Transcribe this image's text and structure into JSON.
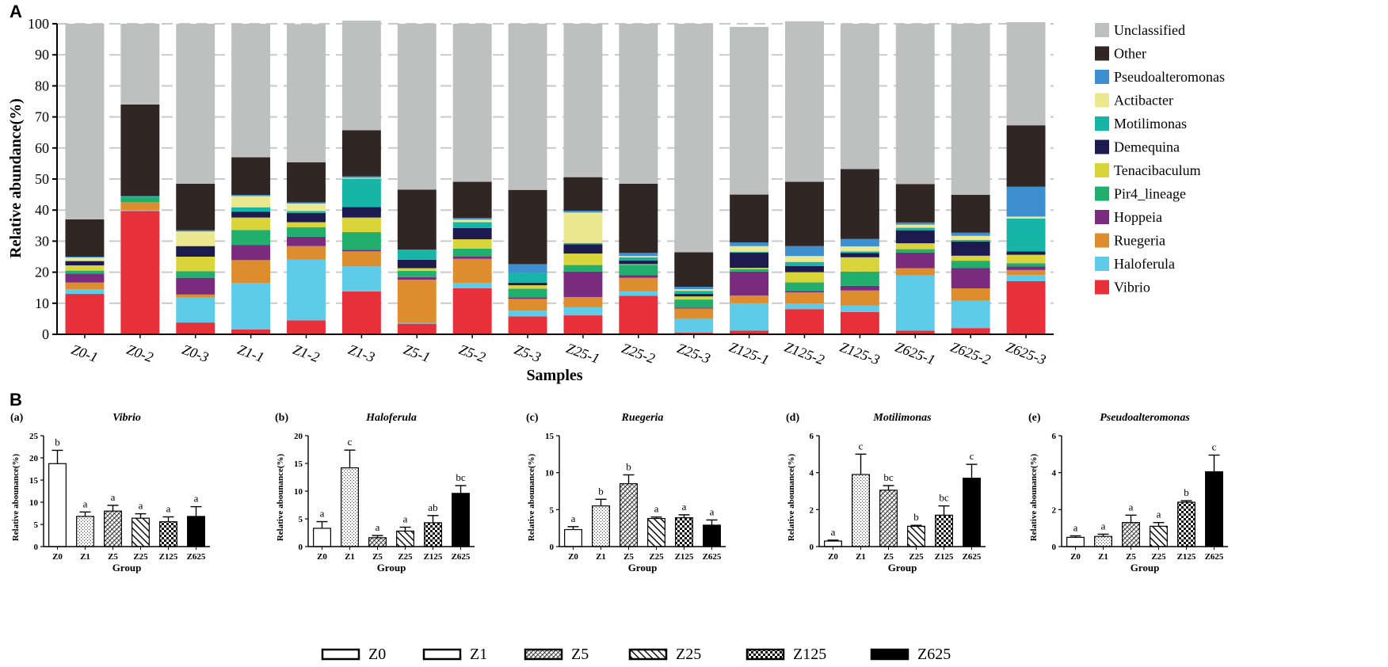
{
  "panel_labels": {
    "a": "A",
    "b": "B"
  },
  "chart_data": [
    {
      "type": "bar",
      "stacked": true,
      "ylabel": "Relative abundance(%)",
      "xlabel": "Samples",
      "ylim": [
        0,
        100
      ],
      "yticks": [
        0,
        10,
        20,
        30,
        40,
        50,
        60,
        70,
        80,
        90,
        100
      ],
      "grid": true,
      "legend_position": "right",
      "categories": [
        "Z0-1",
        "Z0-2",
        "Z0-3",
        "Z1-1",
        "Z1-2",
        "Z1-3",
        "Z5-1",
        "Z5-2",
        "Z5-3",
        "Z25-1",
        "Z25-2",
        "Z25-3",
        "Z125-1",
        "Z125-2",
        "Z125-3",
        "Z625-1",
        "Z625-2",
        "Z625-3"
      ],
      "series": [
        {
          "name": "Vibrio",
          "color": "#e8303a",
          "values": [
            13.0,
            39.7,
            3.8,
            1.6,
            4.5,
            13.8,
            3.4,
            14.8,
            5.8,
            6.1,
            12.4,
            0.5,
            1.2,
            8.1,
            7.2,
            1.2,
            2.0,
            17.1
          ]
        },
        {
          "name": "Haloferula",
          "color": "#5ecbe8",
          "values": [
            1.5,
            0.3,
            8.0,
            14.9,
            19.6,
            8.1,
            0.2,
            1.8,
            1.8,
            2.6,
            1.5,
            4.5,
            8.8,
            1.8,
            2.1,
            17.8,
            8.8,
            2.0
          ]
        },
        {
          "name": "Ruegeria",
          "color": "#dd8d2e",
          "values": [
            2.2,
            2.6,
            1.0,
            7.4,
            4.3,
            4.8,
            14.0,
            7.7,
            3.8,
            3.3,
            4.3,
            3.3,
            2.5,
            3.6,
            4.8,
            2.3,
            4.0,
            1.6
          ]
        },
        {
          "name": "Hoppeia",
          "color": "#7b2b7e",
          "values": [
            2.8,
            0.0,
            5.4,
            4.9,
            3.0,
            0.5,
            0.8,
            0.8,
            0.5,
            8.2,
            0.8,
            0.3,
            7.7,
            0.4,
            1.5,
            5.0,
            6.5,
            1.1
          ]
        },
        {
          "name": "Pir4_lineage",
          "color": "#22ae6c",
          "values": [
            1.0,
            1.6,
            2.1,
            4.8,
            3.1,
            5.7,
            2.0,
            2.5,
            2.8,
            2.1,
            3.4,
            2.6,
            0.8,
            2.8,
            4.6,
            1.1,
            2.4,
            1.1
          ]
        },
        {
          "name": "Tenacibaculum",
          "color": "#d8d43a",
          "values": [
            1.7,
            0.0,
            4.7,
            4.0,
            1.6,
            4.7,
            0.9,
            3.0,
            1.1,
            3.7,
            0.2,
            1.0,
            0.4,
            3.3,
            4.6,
            1.9,
            1.6,
            2.7
          ]
        },
        {
          "name": "Demequina",
          "color": "#1c1a4e",
          "values": [
            1.3,
            0.0,
            3.4,
            1.9,
            3.0,
            3.4,
            2.7,
            3.6,
            0.8,
            3.0,
            1.2,
            0.8,
            4.9,
            2.0,
            1.4,
            4.2,
            4.6,
            1.1
          ]
        },
        {
          "name": "Motilimonas",
          "color": "#16b5a8",
          "values": [
            0.2,
            0.3,
            0.0,
            1.4,
            0.6,
            9.1,
            3.3,
            1.9,
            3.2,
            0.4,
            1.0,
            1.0,
            0.3,
            1.3,
            0.5,
            0.8,
            0.5,
            10.6
          ]
        },
        {
          "name": "Actibacter",
          "color": "#ebe88f",
          "values": [
            1.0,
            0.0,
            4.7,
            3.6,
            2.4,
            0.3,
            0.0,
            0.8,
            0.0,
            9.8,
            0.4,
            0.5,
            1.8,
            1.9,
            1.6,
            1.0,
            1.3,
            0.6
          ]
        },
        {
          "name": "Pseudoalteromonas",
          "color": "#3d8fcf",
          "values": [
            0.3,
            0.0,
            0.4,
            0.4,
            0.4,
            0.5,
            0.0,
            0.6,
            2.8,
            0.6,
            1.0,
            0.8,
            1.2,
            3.2,
            2.4,
            0.7,
            1.0,
            9.6
          ]
        },
        {
          "name": "Other",
          "color": "#302724",
          "values": [
            12.0,
            29.5,
            15.0,
            12.1,
            12.9,
            14.8,
            19.3,
            11.6,
            23.9,
            10.8,
            22.3,
            11.1,
            15.4,
            20.7,
            22.5,
            12.4,
            12.2,
            19.8
          ]
        },
        {
          "name": "Unclassified",
          "color": "#bebfbf",
          "values": [
            63.0,
            26.0,
            51.5,
            43.0,
            44.5,
            35.3,
            53.4,
            50.9,
            53.5,
            49.4,
            51.5,
            73.6,
            54.0,
            51.7,
            46.8,
            51.6,
            55.1,
            33.2
          ]
        }
      ]
    },
    {
      "type": "bar",
      "panel": "(a)",
      "title": "Vibrio",
      "ylabel": "Relative abounance(%)",
      "xlabel": "Group",
      "ylim": [
        0,
        25
      ],
      "yticks": [
        0,
        5,
        10,
        15,
        20,
        25
      ],
      "categories": [
        "Z0",
        "Z1",
        "Z5",
        "Z25",
        "Z125",
        "Z625"
      ],
      "values": [
        18.7,
        6.8,
        8.0,
        6.4,
        5.6,
        6.8
      ],
      "errors": [
        3.0,
        1.0,
        1.3,
        1.0,
        1.1,
        2.2
      ],
      "letters": [
        "b",
        "a",
        "a",
        "a",
        "a",
        "a"
      ]
    },
    {
      "type": "bar",
      "panel": "(b)",
      "title": "Haloferula",
      "ylabel": "Relative abounance(%)",
      "xlabel": "Group",
      "ylim": [
        0,
        20
      ],
      "yticks": [
        0,
        5,
        10,
        15,
        20
      ],
      "categories": [
        "Z0",
        "Z1",
        "Z5",
        "Z25",
        "Z125",
        "Z625"
      ],
      "values": [
        3.3,
        14.2,
        1.6,
        2.8,
        4.3,
        9.6
      ],
      "errors": [
        1.2,
        3.2,
        0.4,
        0.7,
        1.3,
        1.4
      ],
      "letters": [
        "a",
        "c",
        "a",
        "a",
        "ab",
        "bc"
      ]
    },
    {
      "type": "bar",
      "panel": "(c)",
      "title": "Ruegeria",
      "ylabel": "Relative abounance(%)",
      "xlabel": "Group",
      "ylim": [
        0,
        15
      ],
      "yticks": [
        0,
        5,
        10,
        15
      ],
      "categories": [
        "Z0",
        "Z1",
        "Z5",
        "Z25",
        "Z125",
        "Z625"
      ],
      "values": [
        2.3,
        5.5,
        8.5,
        3.8,
        3.9,
        2.9
      ],
      "errors": [
        0.4,
        0.9,
        1.2,
        0.2,
        0.4,
        0.7
      ],
      "letters": [
        "a",
        "b",
        "b",
        "a",
        "a",
        "a"
      ]
    },
    {
      "type": "bar",
      "panel": "(d)",
      "title": "Motilimonas",
      "ylabel": "Relative abounance(%)",
      "xlabel": "Group",
      "ylim": [
        0,
        6
      ],
      "yticks": [
        0,
        2,
        4,
        6
      ],
      "categories": [
        "Z0",
        "Z1",
        "Z5",
        "Z25",
        "Z125",
        "Z625"
      ],
      "values": [
        0.3,
        3.9,
        3.05,
        1.1,
        1.7,
        3.7
      ],
      "errors": [
        0.05,
        1.1,
        0.25,
        0.05,
        0.5,
        0.75
      ],
      "letters": [
        "a",
        "c",
        "bc",
        "b",
        "bc",
        "c"
      ]
    },
    {
      "type": "bar",
      "panel": "(e)",
      "title": "Pseudoalteromonas",
      "ylabel": "Relative abounance(%)",
      "xlabel": "Group",
      "ylim": [
        0,
        6
      ],
      "yticks": [
        0,
        2,
        4,
        6
      ],
      "categories": [
        "Z0",
        "Z1",
        "Z5",
        "Z25",
        "Z125",
        "Z625"
      ],
      "values": [
        0.5,
        0.55,
        1.3,
        1.1,
        2.4,
        4.05
      ],
      "errors": [
        0.08,
        0.12,
        0.4,
        0.2,
        0.08,
        0.9
      ],
      "letters": [
        "a",
        "a",
        "a",
        "a",
        "b",
        "c"
      ]
    }
  ],
  "group_legend": [
    "Z0",
    "Z1",
    "Z5",
    "Z25",
    "Z125",
    "Z625"
  ]
}
